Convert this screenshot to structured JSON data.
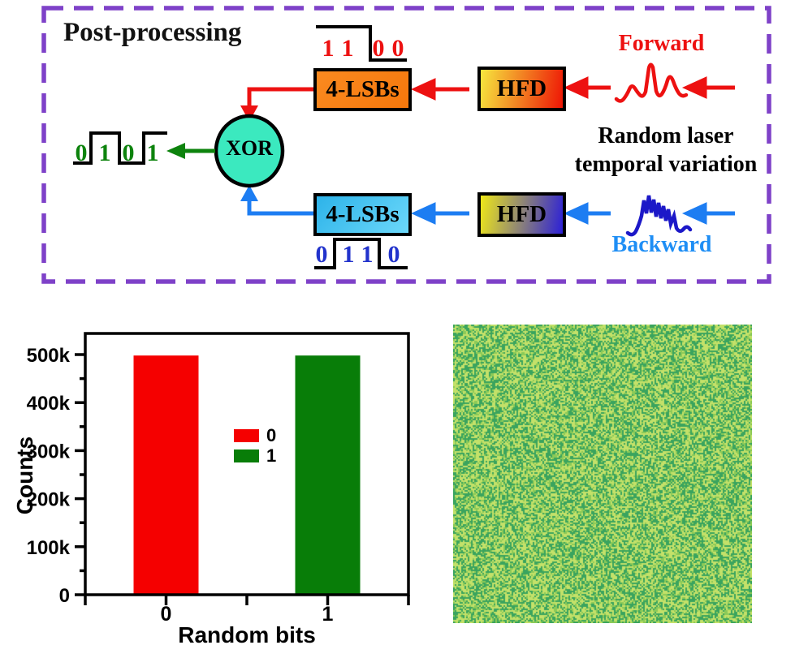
{
  "diagram": {
    "title": "Post-processing",
    "forward_label": "Forward",
    "center_label_line1": "Random laser",
    "center_label_line2": "temporal variation",
    "backward_label": "Backward",
    "xor_label": "XOR",
    "lsb_top_label": "4-LSBs",
    "hfd_top_label": "HFD",
    "lsb_bottom_label": "4-LSBs",
    "hfd_bottom_label": "HFD",
    "forward_bits": [
      "1",
      "1",
      "0",
      "0"
    ],
    "output_bits": [
      "0",
      "1",
      "0",
      "1"
    ],
    "backward_bits": [
      "0",
      "1",
      "1",
      "0"
    ],
    "colors": {
      "frame_purple": "#7e41c8",
      "forward_red": "#ed1111",
      "backward_arrow_blue": "#1d7df2",
      "backward_label_blue": "#1e8ef5",
      "backward_wave_blue": "#1c18c8",
      "output_green": "#0d830d",
      "xor_fill": "#3be9bf",
      "lsb_top_fill": "#f87f15",
      "lsb_bottom_fill": "#46c6f2",
      "hfd_gradient_top": [
        "#f6e73e",
        "#ee1505"
      ],
      "hfd_gradient_bottom": [
        "#efe818",
        "#2b1fd8"
      ]
    }
  },
  "chart_data": {
    "type": "bar",
    "title": "",
    "xlabel": "Random bits",
    "ylabel": "Counts",
    "categories": [
      "0",
      "1"
    ],
    "values": [
      498000,
      498000
    ],
    "series_colors": [
      "#f50000",
      "#087d08"
    ],
    "ylim": [
      0,
      545000
    ],
    "ytick_values": [
      0,
      100000,
      200000,
      300000,
      400000,
      500000
    ],
    "ytick_labels": [
      "0",
      "100k",
      "200k",
      "300k",
      "400k",
      "500k"
    ],
    "minor_ytick_step": 50000,
    "grid": false,
    "legend": {
      "position": "center",
      "entries": [
        {
          "label": "0",
          "color": "#f50000"
        },
        {
          "label": "1",
          "color": "#087d08"
        }
      ]
    }
  },
  "noise_panel": {
    "palette": [
      "#c3e169",
      "#8bca58",
      "#3aa45e"
    ]
  }
}
